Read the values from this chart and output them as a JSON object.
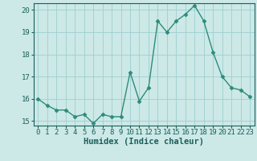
{
  "x": [
    0,
    1,
    2,
    3,
    4,
    5,
    6,
    7,
    8,
    9,
    10,
    11,
    12,
    13,
    14,
    15,
    16,
    17,
    18,
    19,
    20,
    21,
    22,
    23
  ],
  "y": [
    16.0,
    15.7,
    15.5,
    15.5,
    15.2,
    15.3,
    14.9,
    15.3,
    15.2,
    15.2,
    17.2,
    15.9,
    16.5,
    19.5,
    19.0,
    19.5,
    19.8,
    20.2,
    19.5,
    18.1,
    17.0,
    16.5,
    16.4,
    16.1
  ],
  "line_color": "#2d8b7a",
  "marker": "D",
  "marker_size": 2.5,
  "bg_color": "#cce9e7",
  "grid_color": "#9ecece",
  "xlabel": "Humidex (Indice chaleur)",
  "ylim_min": 14.8,
  "ylim_max": 20.3,
  "xlim_min": -0.5,
  "xlim_max": 23.5,
  "yticks": [
    15,
    16,
    17,
    18,
    19,
    20
  ],
  "xticks": [
    0,
    1,
    2,
    3,
    4,
    5,
    6,
    7,
    8,
    9,
    10,
    11,
    12,
    13,
    14,
    15,
    16,
    17,
    18,
    19,
    20,
    21,
    22,
    23
  ],
  "xlabel_fontsize": 7.5,
  "tick_fontsize": 6.5,
  "tick_color": "#1a5f5a",
  "label_color": "#1a5f5a",
  "linewidth": 1.0
}
